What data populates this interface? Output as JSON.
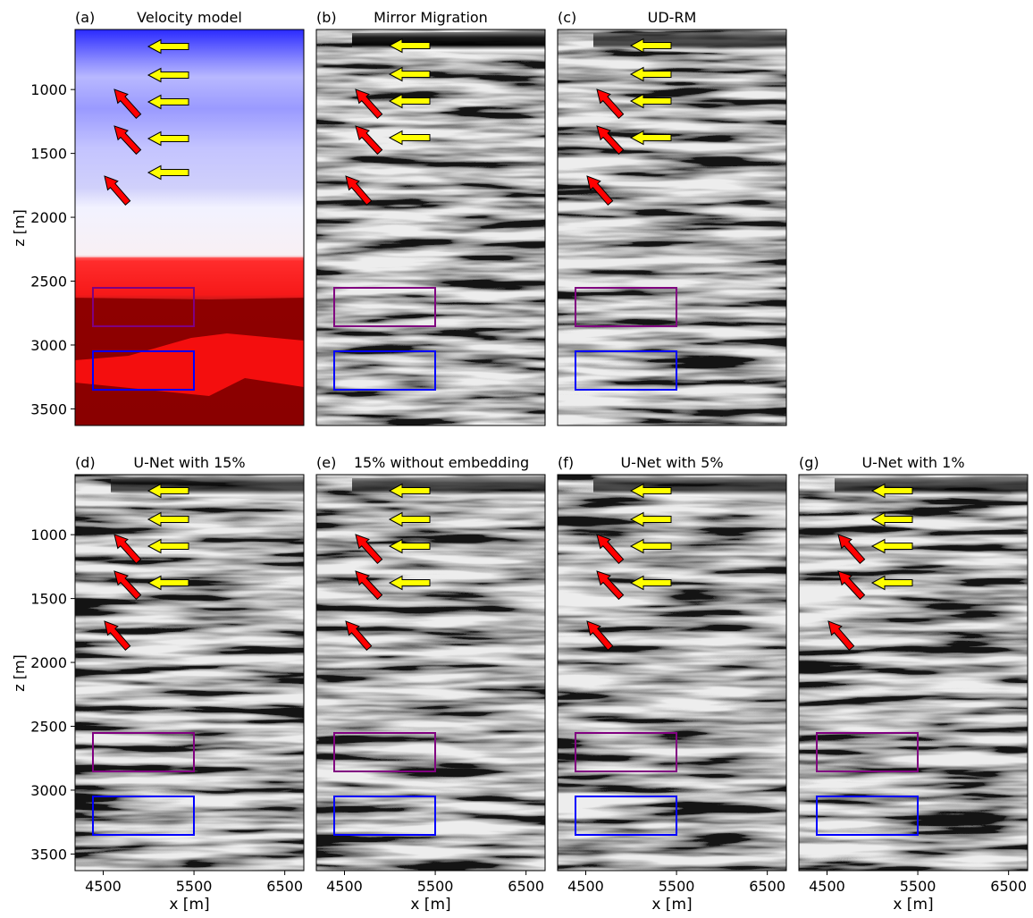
{
  "chart_data": [
    {
      "type": "image",
      "label": "(a)",
      "title": "Velocity model",
      "colormap": "bwr",
      "ylabel": "z [m]",
      "ylim": [
        530,
        3630
      ],
      "yticks": [
        1000,
        1500,
        2000,
        2500,
        3000,
        3500
      ]
    },
    {
      "type": "image",
      "label": "(b)",
      "title": "Mirror Migration",
      "colormap": "gray"
    },
    {
      "type": "image",
      "label": "(c)",
      "title": "UD-RM",
      "colormap": "gray"
    },
    {
      "type": "image",
      "label": "(d)",
      "title": "U-Net with 15%",
      "colormap": "gray",
      "xlabel": "x [m]",
      "ylabel": "z [m]",
      "xlim": [
        4190,
        6710
      ],
      "ylim": [
        530,
        3630
      ],
      "xticks": [
        4500,
        5500,
        6500
      ],
      "yticks": [
        1000,
        1500,
        2000,
        2500,
        3000,
        3500
      ]
    },
    {
      "type": "image",
      "label": "(e)",
      "title": "15% without embedding",
      "colormap": "gray",
      "xlabel": "x [m]",
      "xlim": [
        4190,
        6710
      ],
      "xticks": [
        4500,
        5500,
        6500
      ]
    },
    {
      "type": "image",
      "label": "(f)",
      "title": "U-Net with 5%",
      "colormap": "gray",
      "xlabel": "x [m]",
      "xlim": [
        4190,
        6710
      ],
      "xticks": [
        4500,
        5500,
        6500
      ]
    },
    {
      "type": "image",
      "label": "(g)",
      "title": "U-Net with 1%",
      "colormap": "gray",
      "xlabel": "x [m]",
      "xlim": [
        4190,
        6710
      ],
      "xticks": [
        4500,
        5500,
        6500
      ]
    }
  ]
}
